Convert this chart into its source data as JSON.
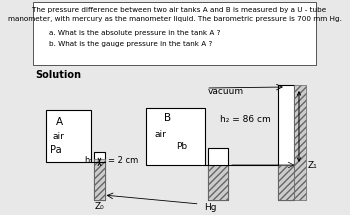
{
  "title_line1": "    The pressure difference between two air tanks A and B is measured by a U - tube",
  "title_line2": "manometer, with mercury as the manometer liquid. The barometric pressure is 700 mm Hg.",
  "question_a": "    a. What is the absolute pressure in the tank A ?",
  "question_b": "    b. What is the gauge pressure in the tank A ?",
  "solution_label": "Solution",
  "label_A": "A",
  "label_air_a": "air",
  "label_Pa": "Pa",
  "label_B": "B",
  "label_air_b": "air",
  "label_Pb": "Pb",
  "label_vacuum": "vacuum",
  "label_h2": "h₂ = 86 cm",
  "label_h1": "h₁",
  "label_h1_val": "= 2 cm",
  "label_Z0": "Z₀",
  "label_Z1": "Z₁",
  "label_Hg": "Hg",
  "bg_color": "#e8e8e8",
  "text_color": "#000000"
}
